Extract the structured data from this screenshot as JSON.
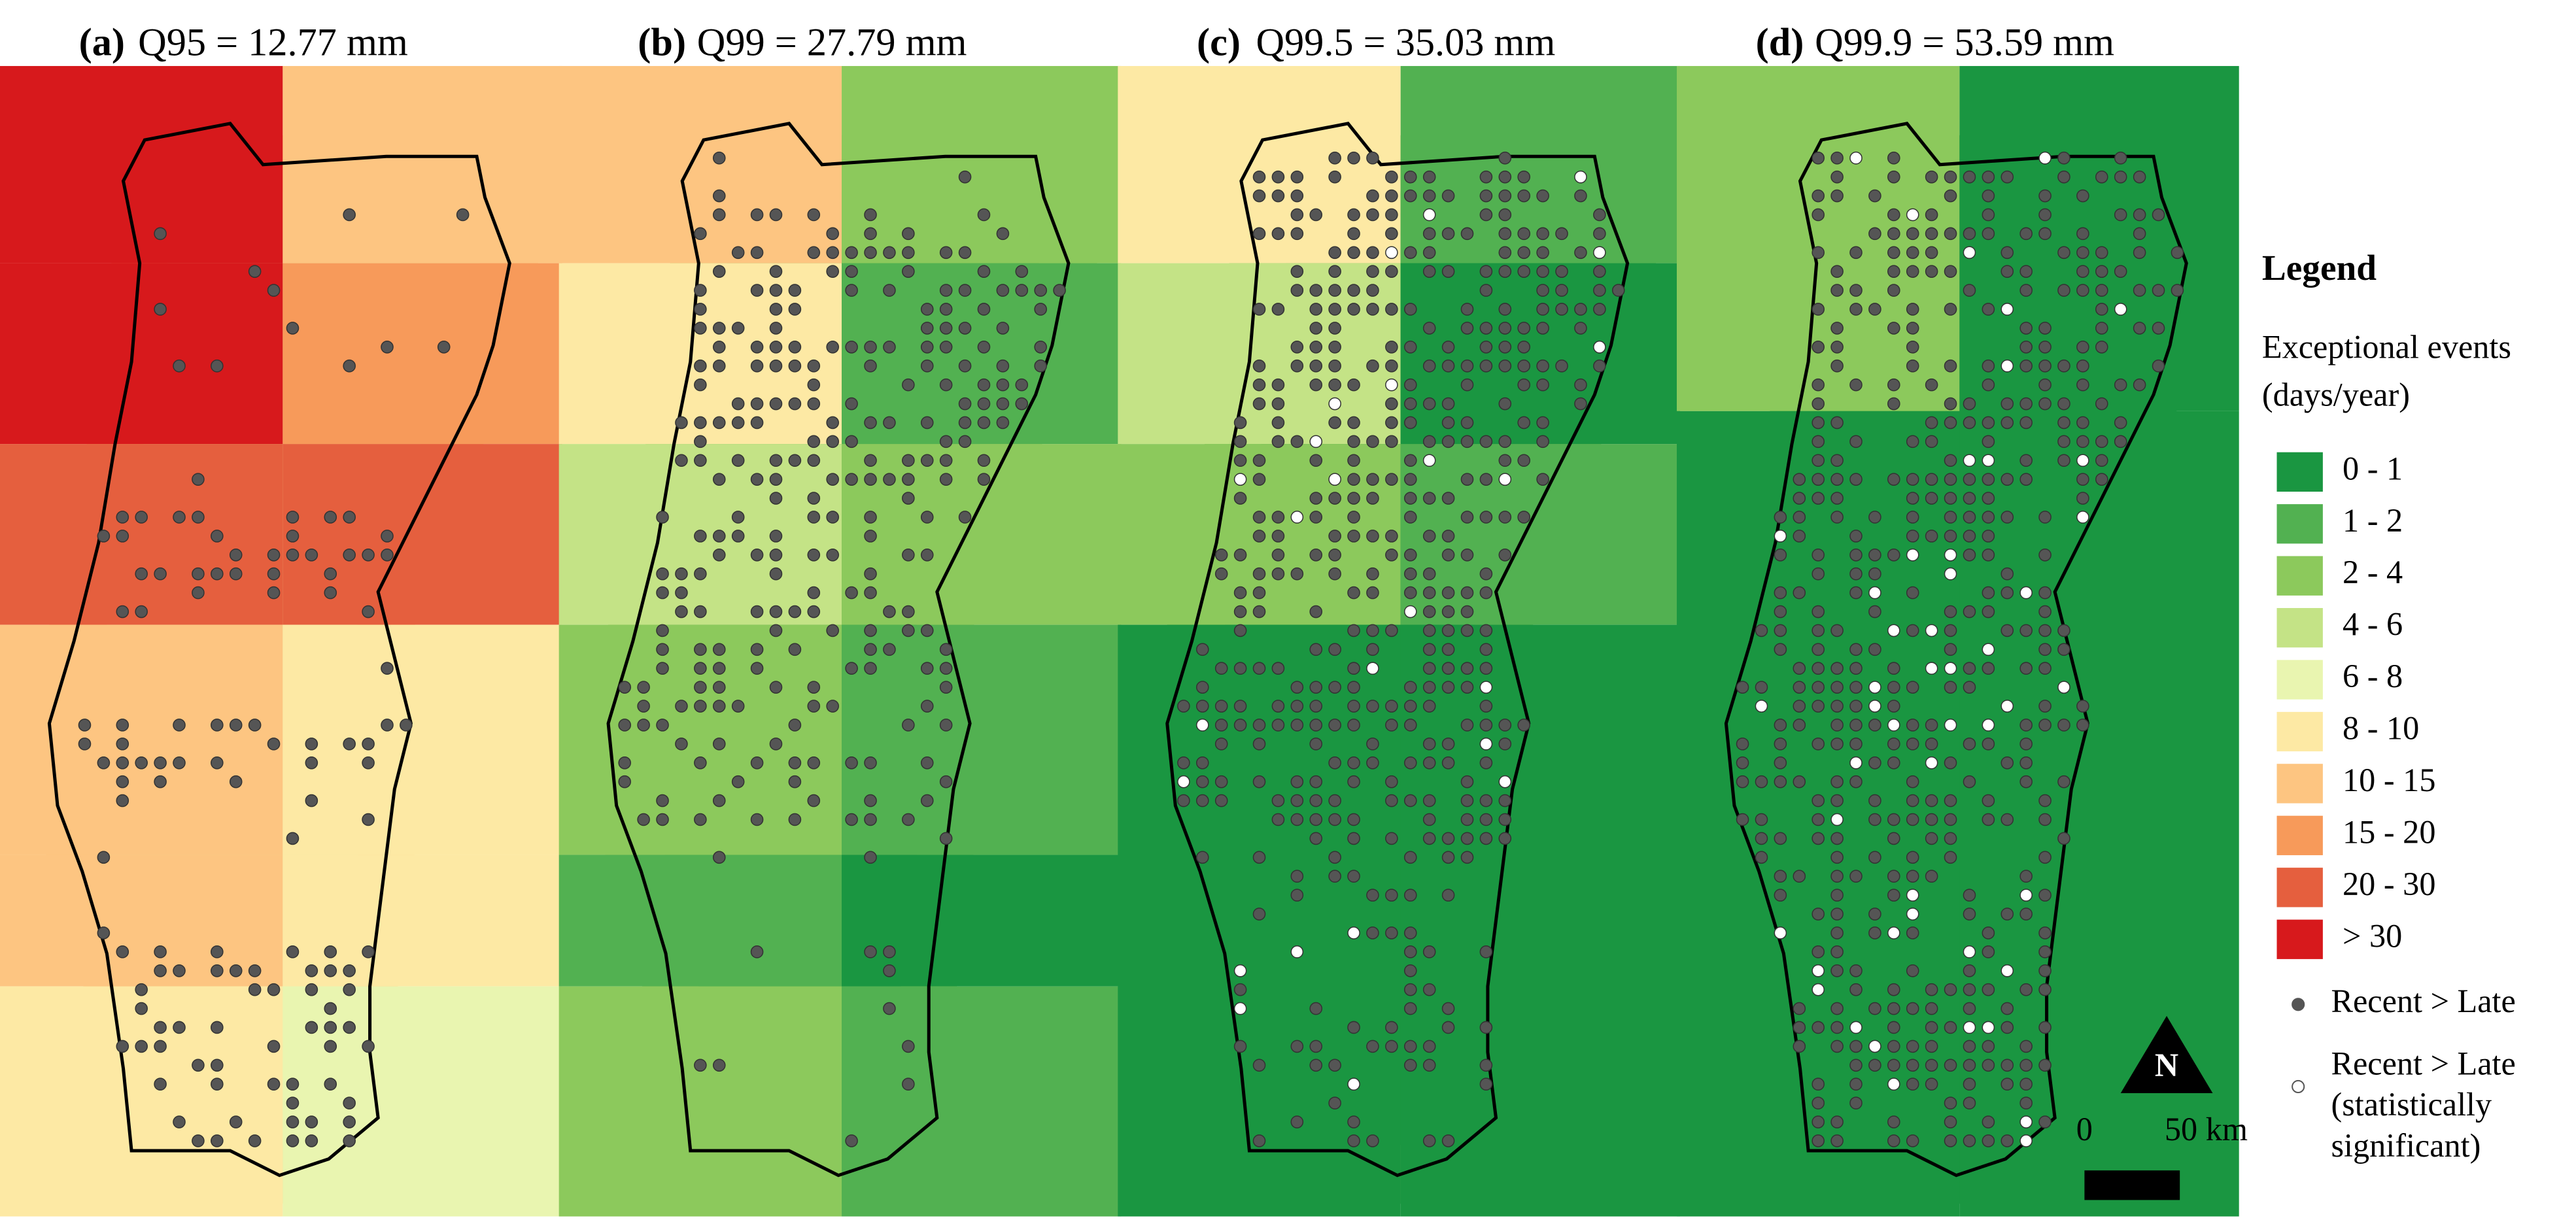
{
  "panels": [
    {
      "label": "(a)",
      "title": "Q95 = 12.77 mm"
    },
    {
      "label": "(b)",
      "title": "Q99 = 27.79 mm"
    },
    {
      "label": "(c)",
      "title": "Q99.5 = 35.03 mm"
    },
    {
      "label": "(d)",
      "title": "Q99.9 = 53.59 mm"
    }
  ],
  "legend": {
    "title": "Legend",
    "subtitle": "Exceptional events",
    "unit": "(days/year)",
    "classes": [
      {
        "label": "0 - 1",
        "color": "#1a9641"
      },
      {
        "label": "1 - 2",
        "color": "#52b151"
      },
      {
        "label": "2 - 4",
        "color": "#8cc95c"
      },
      {
        "label": "4 - 6",
        "color": "#c4e386"
      },
      {
        "label": "6 - 8",
        "color": "#e9f5b0"
      },
      {
        "label": "8 - 10",
        "color": "#fde9a4"
      },
      {
        "label": "10 - 15",
        "color": "#fdc581"
      },
      {
        "label": "15 - 20",
        "color": "#f79a5a"
      },
      {
        "label": "20 - 30",
        "color": "#e55f3e"
      },
      {
        "label": "> 30",
        "color": "#d7191c"
      }
    ],
    "markers": [
      {
        "lines": [
          "Recent > Late"
        ],
        "fill": "#555555"
      },
      {
        "lines": [
          "Recent > Late",
          "(statistically",
          "significant)"
        ],
        "fill": "#ffffff"
      }
    ]
  },
  "scale_bar": {
    "start": "0",
    "end": "50 km"
  },
  "north": "N"
}
